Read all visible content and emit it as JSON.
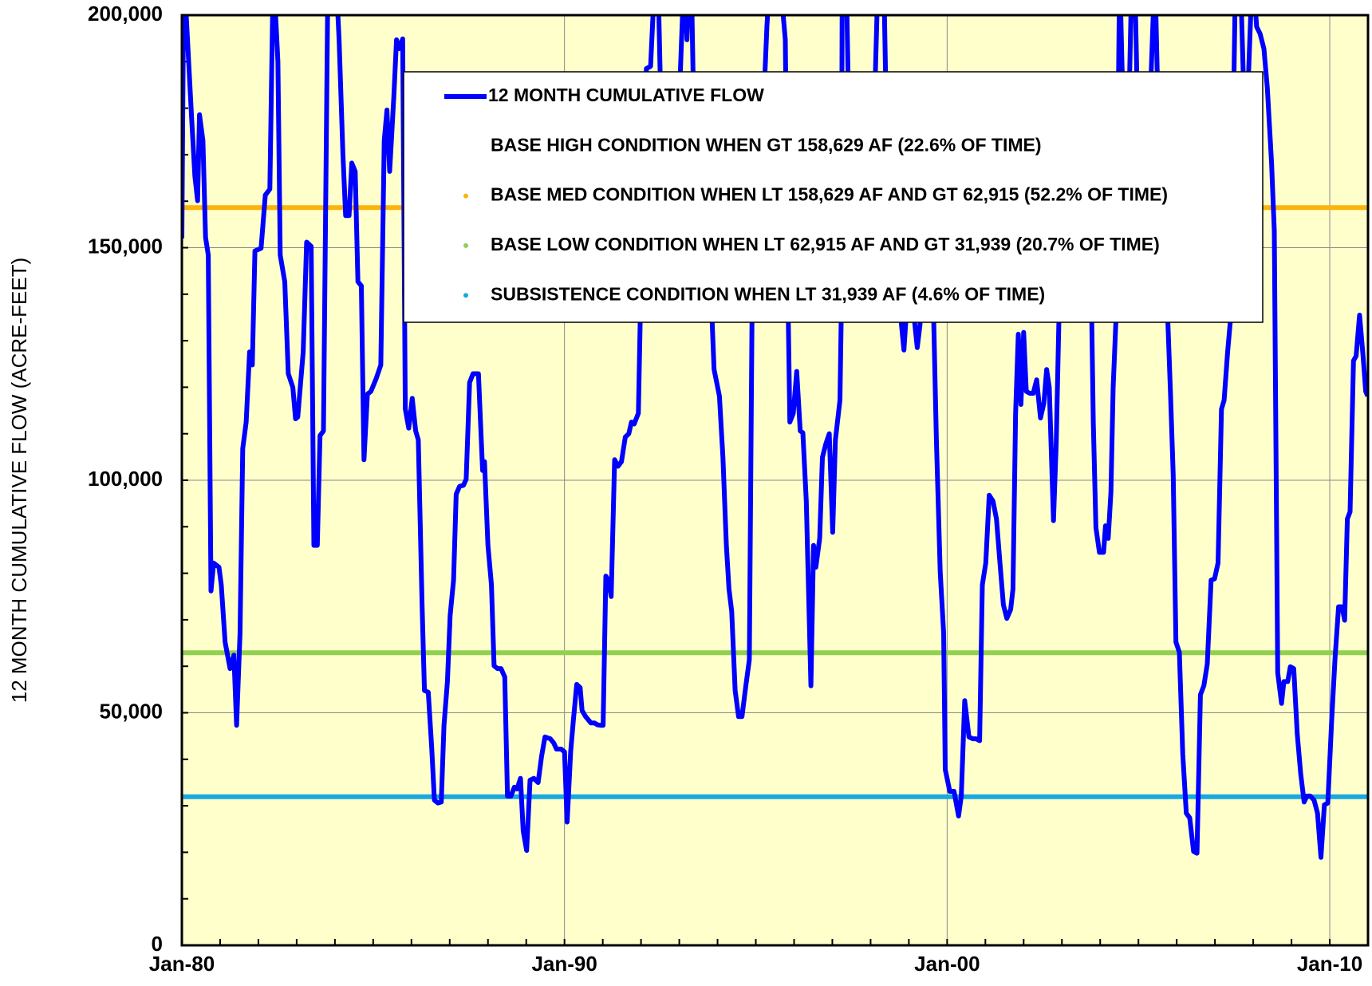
{
  "chart_data": {
    "type": "line",
    "y_axis_label": "12 MONTH CUMULATIVE FLOW (ACRE-FEET)",
    "xlim": [
      1980,
      2011
    ],
    "xticks": [
      {
        "value": 1980,
        "label": "Jan-80"
      },
      {
        "value": 1990,
        "label": "Jan-90"
      },
      {
        "value": 2000,
        "label": "Jan-00"
      },
      {
        "value": 2010,
        "label": "Jan-10"
      }
    ],
    "xminorticks": [
      1980,
      1981,
      1982,
      1983,
      1984,
      1985,
      1986,
      1987,
      1988,
      1989,
      1990,
      1991,
      1992,
      1993,
      1994,
      1995,
      1996,
      1997,
      1998,
      1999,
      2000,
      2001,
      2002,
      2003,
      2004,
      2005,
      2006,
      2007,
      2008,
      2009,
      2010,
      2011
    ],
    "ylim": [
      0,
      200000
    ],
    "yticks": [
      0,
      {
        "value": 50000,
        "label": "50,000"
      },
      {
        "value": 100000,
        "label": "100,000"
      },
      {
        "value": 150000,
        "label": "150,000"
      },
      {
        "value": 200000,
        "label": "200,000"
      }
    ],
    "yminorticks": [
      0,
      10000,
      20000,
      30000,
      40000,
      50000,
      60000,
      70000,
      80000,
      90000,
      100000,
      110000,
      120000,
      130000,
      140000,
      150000,
      160000,
      170000,
      180000,
      190000,
      200000
    ],
    "grid": true,
    "background": "#ffffcc",
    "series": [
      {
        "name": "12 MONTH CUMULATIVE FLOW",
        "color": "#0000ff",
        "x": [
          1980.0,
          1980.05,
          1980.25,
          1980.34,
          1980.41,
          1980.46,
          1980.55,
          1980.62,
          1980.69,
          1980.76,
          1980.83,
          1980.97,
          1981.03,
          1981.13,
          1981.26,
          1981.36,
          1981.43,
          1981.52,
          1981.59,
          1981.68,
          1981.77,
          1981.84,
          1981.91,
          1982.07,
          1982.18,
          1982.3,
          1982.39,
          1982.51,
          1982.57,
          1982.69,
          1982.78,
          1982.9,
          1982.97,
          1983.03,
          1983.17,
          1983.26,
          1983.38,
          1983.45,
          1983.54,
          1983.61,
          1983.7,
          1983.82,
          1984.02,
          1984.11,
          1984.21,
          1984.28,
          1984.37,
          1984.44,
          1984.53,
          1984.6,
          1984.69,
          1984.76,
          1984.85,
          1984.94,
          1985.08,
          1985.2,
          1985.29,
          1985.36,
          1985.43,
          1985.54,
          1985.61,
          1985.68,
          1985.77,
          1985.84,
          1985.93,
          1986.02,
          1986.11,
          1986.18,
          1986.28,
          1986.34,
          1986.44,
          1986.53,
          1986.6,
          1986.69,
          1986.78,
          1986.85,
          1986.94,
          1987.01,
          1987.1,
          1987.17,
          1987.26,
          1987.36,
          1987.43,
          1987.52,
          1987.61,
          1987.75,
          1987.86,
          1987.91,
          1988.0,
          1988.09,
          1988.16,
          1988.25,
          1988.34,
          1988.44,
          1988.51,
          1988.6,
          1988.69,
          1988.76,
          1988.85,
          1988.92,
          1989.01,
          1989.1,
          1989.2,
          1989.31,
          1989.4,
          1989.49,
          1989.63,
          1989.72,
          1989.79,
          1989.91,
          1990.0,
          1990.07,
          1990.16,
          1990.23,
          1990.32,
          1990.41,
          1990.46,
          1990.55,
          1990.69,
          1990.78,
          1990.87,
          1990.94,
          1991.01,
          1991.08,
          1991.15,
          1991.22,
          1991.31,
          1991.4,
          1991.49,
          1991.59,
          1991.68,
          1991.75,
          1991.82,
          1991.93,
          1991.98,
          1992.14,
          1992.25,
          1992.37,
          1992.44,
          1992.6,
          1992.9,
          1993.13,
          1993.2,
          1993.27,
          1993.31,
          1993.36,
          1993.6,
          1993.86,
          1993.91,
          1994.05,
          1994.14,
          1994.23,
          1994.3,
          1994.37,
          1994.46,
          1994.55,
          1994.64,
          1994.74,
          1994.83,
          1994.9,
          1995.1,
          1995.29,
          1995.38,
          1995.61,
          1995.77,
          1995.85,
          1995.89,
          1995.98,
          1996.07,
          1996.16,
          1996.23,
          1996.32,
          1996.44,
          1996.51,
          1996.57,
          1996.67,
          1996.74,
          1996.83,
          1996.92,
          1997.01,
          1997.08,
          1997.2,
          1997.23,
          1997.26,
          1997.36,
          1997.45,
          1998.0,
          1998.2,
          1998.34,
          1998.39,
          1998.8,
          1998.87,
          1998.92,
          1999.0,
          1999.15,
          1999.22,
          1999.29,
          1999.4,
          1999.65,
          1999.72,
          1999.82,
          1999.91,
          1999.95,
          2000.07,
          2000.18,
          2000.3,
          2000.37,
          2000.46,
          2000.57,
          2000.67,
          2000.76,
          2000.85,
          2000.92,
          2001.01,
          2001.1,
          2001.2,
          2001.29,
          2001.38,
          2001.47,
          2001.56,
          2001.66,
          2001.72,
          2001.79,
          2001.86,
          2001.93,
          2002.0,
          2002.07,
          2002.16,
          2002.25,
          2002.34,
          2002.44,
          2002.53,
          2002.6,
          2002.67,
          2002.78,
          2002.85,
          2002.92,
          2003.0,
          2003.5,
          2003.78,
          2003.82,
          2003.89,
          2003.98,
          2004.09,
          2004.14,
          2004.21,
          2004.28,
          2004.34,
          2004.41,
          2004.51,
          2004.57,
          2004.7,
          2004.83,
          2004.9,
          2005.0,
          2005.3,
          2005.43,
          2005.49,
          2005.77,
          2005.84,
          2005.91,
          2005.98,
          2006.07,
          2006.16,
          2006.25,
          2006.34,
          2006.44,
          2006.53,
          2006.62,
          2006.71,
          2006.8,
          2006.9,
          2006.99,
          2007.08,
          2007.17,
          2007.24,
          2007.33,
          2007.4,
          2007.54,
          2007.66,
          2007.8,
          2007.98,
          2008.09,
          2008.18,
          2008.28,
          2008.37,
          2008.48,
          2008.55,
          2008.64,
          2008.74,
          2008.8,
          2008.9,
          2008.97,
          2009.06,
          2009.15,
          2009.24,
          2009.33,
          2009.4,
          2009.49,
          2009.59,
          2009.68,
          2009.77,
          2009.86,
          2009.95,
          2010.05,
          2010.14,
          2010.23,
          2010.32,
          2010.39,
          2010.46,
          2010.53,
          2010.62,
          2010.69,
          2010.78,
          2010.87,
          2010.94,
          2010.99
        ],
        "values": [
          152000,
          210000,
          178600,
          165400,
          160100,
          178600,
          173000,
          152200,
          148400,
          76200,
          82200,
          81300,
          77500,
          65200,
          59500,
          62400,
          47300,
          67100,
          106800,
          112500,
          127600,
          124800,
          149300,
          149900,
          161300,
          162600,
          210000,
          190000,
          148400,
          142700,
          122900,
          120000,
          113200,
          113600,
          127600,
          151200,
          150300,
          86000,
          86000,
          109600,
          110600,
          210000,
          210000,
          194700,
          170100,
          156900,
          156900,
          168200,
          166400,
          142700,
          141800,
          104400,
          118500,
          119100,
          121900,
          124800,
          173000,
          179600,
          166400,
          182400,
          194700,
          192800,
          194900,
          115300,
          111200,
          117600,
          110600,
          108700,
          72800,
          54800,
          54400,
          42500,
          31200,
          30600,
          30800,
          47300,
          56700,
          70900,
          78500,
          97000,
          98700,
          98900,
          100200,
          121000,
          122900,
          122900,
          102100,
          104000,
          86000,
          77500,
          60100,
          59500,
          59500,
          57700,
          32100,
          32100,
          34000,
          33600,
          35900,
          24600,
          20400,
          35500,
          35900,
          35000,
          40600,
          44800,
          44400,
          43500,
          42200,
          42200,
          41600,
          26500,
          41600,
          48200,
          56100,
          55400,
          50500,
          49200,
          47800,
          47800,
          47400,
          47300,
          47300,
          79400,
          78500,
          75000,
          104400,
          103000,
          104000,
          109300,
          110000,
          112500,
          112100,
          114400,
          135200,
          188500,
          189000,
          210000,
          210000,
          150000,
          160000,
          210000,
          194700,
          210000,
          210000,
          188000,
          150000,
          134000,
          123800,
          118100,
          104900,
          86000,
          76600,
          71800,
          54800,
          49200,
          49200,
          55800,
          61400,
          134000,
          160000,
          197500,
          210000,
          210000,
          194700,
          134000,
          112500,
          114400,
          123400,
          110600,
          110200,
          95500,
          55800,
          86000,
          81300,
          87500,
          104900,
          107800,
          110000,
          88800,
          108700,
          117200,
          134000,
          210000,
          210000,
          170000,
          150000,
          210000,
          210000,
          188000,
          134000,
          128000,
          134000,
          150000,
          134000,
          128500,
          133300,
          150000,
          134000,
          108700,
          80300,
          67100,
          37800,
          33100,
          33100,
          27800,
          32100,
          52600,
          44800,
          44400,
          44400,
          44000,
          77500,
          82200,
          96800,
          95500,
          91700,
          82200,
          73200,
          70300,
          72200,
          76600,
          114400,
          131400,
          116300,
          131800,
          119100,
          118700,
          118700,
          121600,
          113400,
          116600,
          123800,
          120000,
          91300,
          107800,
          133700,
          140000,
          150000,
          134000,
          112500,
          89800,
          84500,
          84500,
          90200,
          87500,
          97400,
          120000,
          134000,
          210000,
          189000,
          160000,
          210000,
          210000,
          170000,
          180000,
          210000,
          188000,
          134000,
          118100,
          101100,
          65200,
          63000,
          41000,
          28400,
          27400,
          20200,
          19800,
          53900,
          55800,
          60500,
          78500,
          78800,
          82200,
          115300,
          117200,
          127600,
          134000,
          210000,
          210000,
          170000,
          210000,
          197500,
          196000,
          192800,
          184300,
          168200,
          153700,
          58600,
          52000,
          56700,
          56700,
          59900,
          59500,
          45400,
          36900,
          30800,
          32100,
          32100,
          31200,
          28400,
          18900,
          30200,
          30600,
          48200,
          61800,
          72800,
          72800,
          69900,
          91700,
          93200,
          125700,
          126700,
          135500,
          126700,
          119100,
          118100
        ]
      }
    ],
    "thresholds": [
      {
        "name": "BASE HIGH CONDITION WHEN GT 158,629 AF (22.6% OF TIME)"
      },
      {
        "name": "BASE MED CONDITION WHEN LT 158,629 AF AND GT 62,915 (52.2% OF TIME)",
        "value": 158629,
        "color": "#fbb40c"
      },
      {
        "name": "BASE LOW CONDITION WHEN LT 62,915 AF AND GT 31,939 (20.7% OF TIME)",
        "value": 62915,
        "color": "#92d050"
      },
      {
        "name": "SUBSISTENCE CONDITION WHEN LT 31,939 AF (4.6% OF TIME)",
        "value": 31939,
        "color": "#1aa8e0"
      }
    ],
    "legend": "top-center"
  }
}
